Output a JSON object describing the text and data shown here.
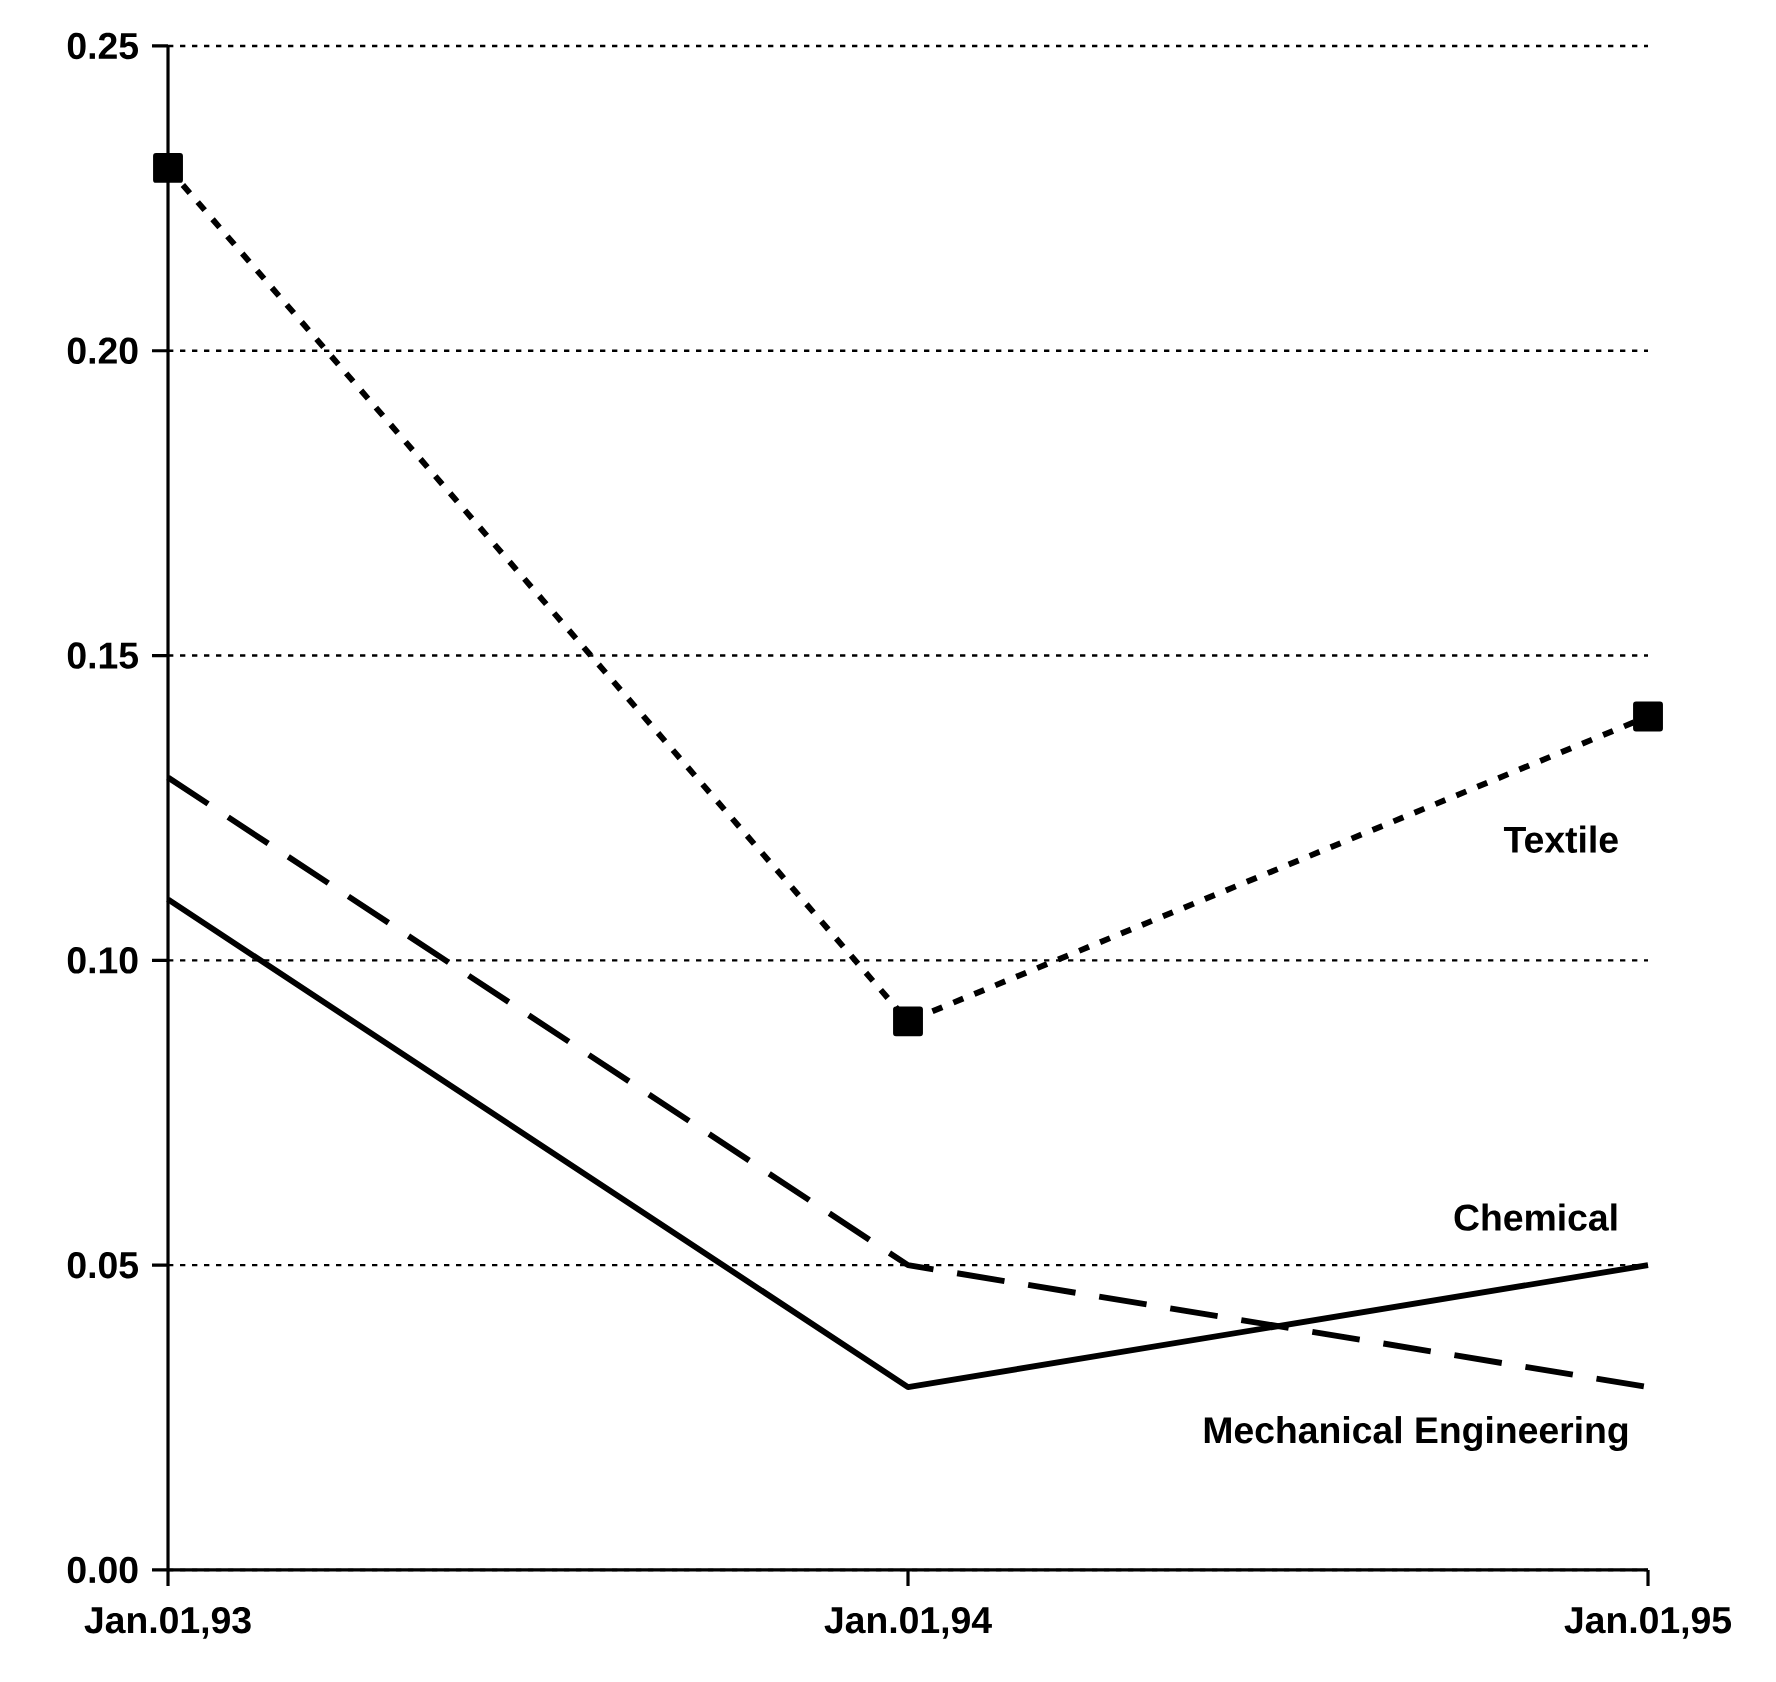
{
  "chart_data": {
    "type": "line",
    "categories": [
      "Jan.01,93",
      "Jan.01,94",
      "Jan.01,95"
    ],
    "series": [
      {
        "name": "Textile",
        "color": "#000000",
        "values": [
          0.23,
          0.09,
          0.14
        ],
        "line_style": "dotted",
        "marker": "square"
      },
      {
        "name": "Chemical",
        "color": "#000000",
        "values": [
          0.11,
          0.03,
          0.05
        ],
        "line_style": "solid",
        "marker": "none"
      },
      {
        "name": "Mechanical Engineering",
        "color": "#000000",
        "values": [
          0.13,
          0.05,
          0.03
        ],
        "line_style": "dashed",
        "marker": "none"
      }
    ],
    "ylim": [
      0,
      0.25
    ],
    "yticks": [
      {
        "value": 0,
        "label": "0.00"
      },
      {
        "value": 0.05,
        "label": "0.05"
      },
      {
        "value": 0.1,
        "label": "0.10"
      },
      {
        "value": 0.15,
        "label": "0.15"
      },
      {
        "value": 0.2,
        "label": "0.20"
      },
      {
        "value": 0.25,
        "label": "0.25"
      }
    ],
    "grid": "y"
  }
}
